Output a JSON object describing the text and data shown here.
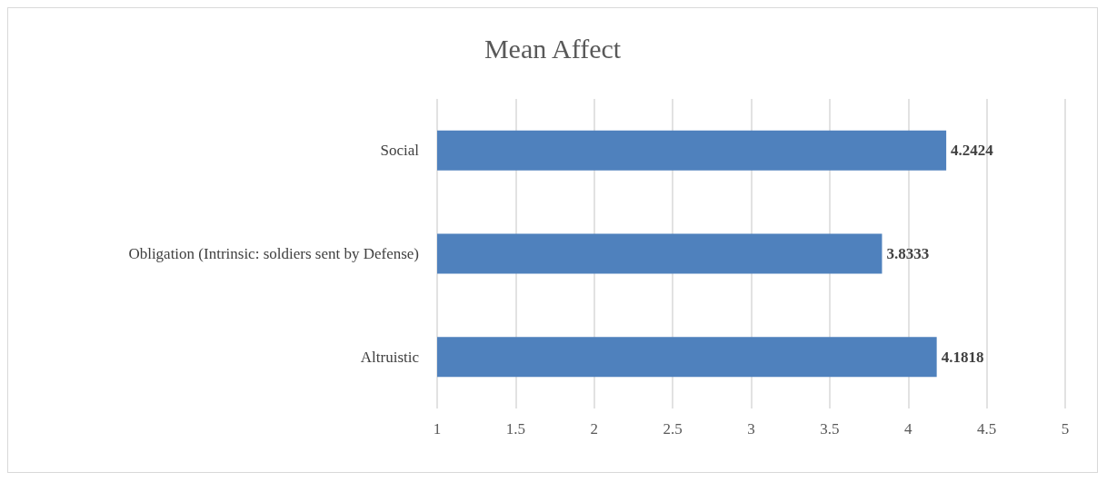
{
  "chart_data": {
    "type": "bar",
    "title": "Mean Affect",
    "orientation": "horizontal",
    "categories": [
      "Social",
      "Obligation (Intrinsic: soldiers sent by Defense)",
      "Altruistic"
    ],
    "values": [
      4.2424,
      3.8333,
      4.1818
    ],
    "color": "#4f81bd",
    "xlim": [
      1,
      5
    ],
    "xticks": [
      1,
      1.5,
      2,
      2.5,
      3,
      3.5,
      4,
      4.5,
      5
    ],
    "grid": "x",
    "data_labels": true
  }
}
